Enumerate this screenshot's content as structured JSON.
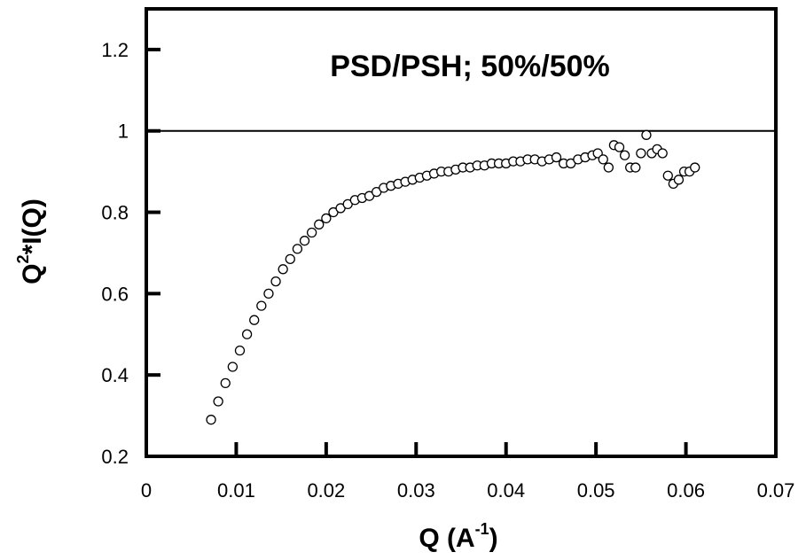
{
  "chart_data": {
    "type": "scatter",
    "title": "PSD/PSH; 50%/50%",
    "xlabel": "Q (A",
    "xlabel_sup": "-1",
    "xlabel_close": ")",
    "ylabel": "Q",
    "ylabel_sup": "2",
    "ylabel_rest": "*I(Q)",
    "xlim": [
      0,
      0.07
    ],
    "ylim": [
      0.2,
      1.3
    ],
    "xticks": [
      "0",
      "0.01",
      "0.02",
      "0.03",
      "0.04",
      "0.05",
      "0.06",
      "0.07"
    ],
    "yticks": [
      "0.2",
      "0.4",
      "0.6",
      "0.8",
      "1",
      "1.2"
    ],
    "reference_line_y": 1.0,
    "grid": false,
    "marker": "open-circle",
    "series": [
      {
        "x": [
          0.0072,
          0.008,
          0.0088,
          0.0096,
          0.0104,
          0.0112,
          0.012,
          0.0128,
          0.0136,
          0.0144,
          0.0152,
          0.016,
          0.0168,
          0.0176,
          0.0184,
          0.0192,
          0.02,
          0.0208,
          0.0216,
          0.0224,
          0.0232,
          0.024,
          0.0248,
          0.0256,
          0.0264,
          0.0272,
          0.028,
          0.0288,
          0.0296,
          0.0304,
          0.0312,
          0.032,
          0.0328,
          0.0336,
          0.0344,
          0.0352,
          0.036,
          0.0368,
          0.0376,
          0.0384,
          0.0392,
          0.04,
          0.0408,
          0.0416,
          0.0424,
          0.0432,
          0.044,
          0.0448,
          0.0456,
          0.0464,
          0.0472,
          0.048,
          0.0488,
          0.0496,
          0.0502,
          0.0508,
          0.0514,
          0.052,
          0.0526,
          0.0532,
          0.0538,
          0.0544,
          0.055,
          0.0556,
          0.0562,
          0.0568,
          0.0574,
          0.058,
          0.0586,
          0.0592,
          0.0598,
          0.0604,
          0.061
        ],
        "y": [
          0.29,
          0.335,
          0.38,
          0.42,
          0.46,
          0.5,
          0.535,
          0.57,
          0.6,
          0.63,
          0.66,
          0.685,
          0.71,
          0.73,
          0.75,
          0.77,
          0.785,
          0.8,
          0.81,
          0.82,
          0.83,
          0.835,
          0.84,
          0.85,
          0.86,
          0.865,
          0.87,
          0.875,
          0.88,
          0.885,
          0.89,
          0.895,
          0.9,
          0.9,
          0.905,
          0.91,
          0.91,
          0.915,
          0.915,
          0.92,
          0.92,
          0.92,
          0.925,
          0.925,
          0.93,
          0.93,
          0.925,
          0.93,
          0.935,
          0.92,
          0.92,
          0.93,
          0.935,
          0.94,
          0.945,
          0.93,
          0.91,
          0.965,
          0.96,
          0.94,
          0.91,
          0.91,
          0.945,
          0.99,
          0.945,
          0.955,
          0.945,
          0.89,
          0.87,
          0.88,
          0.9,
          0.9,
          0.91
        ]
      }
    ]
  }
}
